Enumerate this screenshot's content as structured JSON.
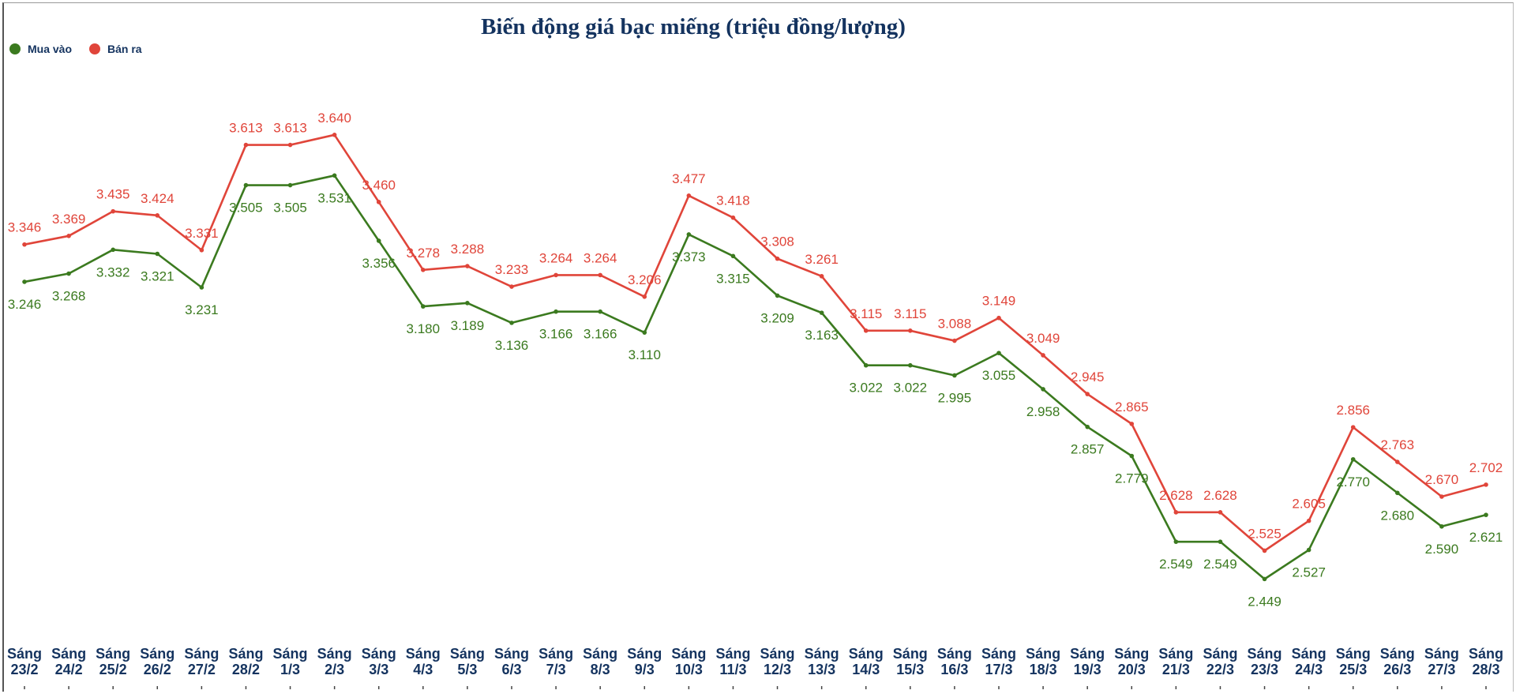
{
  "chart_data": {
    "type": "line",
    "title": "Biến động giá bạc miếng (triệu đồng/lượng)",
    "xlabel": "",
    "ylabel": "",
    "ylim": [
      2.2,
      3.9
    ],
    "grid": false,
    "legend_position": "top-left",
    "categories": [
      "Sáng 23/2",
      "Sáng 24/2",
      "Sáng 25/2",
      "Sáng 26/2",
      "Sáng 27/2",
      "Sáng 28/2",
      "Sáng 1/3",
      "Sáng 2/3",
      "Sáng 3/3",
      "Sáng 4/3",
      "Sáng 5/3",
      "Sáng 6/3",
      "Sáng 7/3",
      "Sáng 8/3",
      "Sáng 9/3",
      "Sáng 10/3",
      "Sáng 11/3",
      "Sáng 12/3",
      "Sáng 13/3",
      "Sáng 14/3",
      "Sáng 15/3",
      "Sáng 16/3",
      "Sáng 17/3",
      "Sáng 18/3",
      "Sáng 19/3",
      "Sáng 20/3",
      "Sáng 21/3",
      "Sáng 22/3",
      "Sáng 23/3",
      "Sáng 24/3",
      "Sáng 25/3",
      "Sáng 26/3",
      "Sáng 27/3",
      "Sáng 28/3"
    ],
    "series": [
      {
        "name": "Mua vào",
        "color": "#3b7a1f",
        "values": [
          3.246,
          3.268,
          3.332,
          3.321,
          3.231,
          3.505,
          3.505,
          3.531,
          3.356,
          3.18,
          3.189,
          3.136,
          3.166,
          3.166,
          3.11,
          3.373,
          3.315,
          3.209,
          3.163,
          3.022,
          3.022,
          2.995,
          3.055,
          2.958,
          2.857,
          2.779,
          2.549,
          2.549,
          2.449,
          2.527,
          2.77,
          2.68,
          2.59,
          2.621
        ]
      },
      {
        "name": "Bán ra",
        "color": "#e0453a",
        "values": [
          3.346,
          3.369,
          3.435,
          3.424,
          3.331,
          3.613,
          3.613,
          3.64,
          3.46,
          3.278,
          3.288,
          3.233,
          3.264,
          3.264,
          3.206,
          3.477,
          3.418,
          3.308,
          3.261,
          3.115,
          3.115,
          3.088,
          3.149,
          3.049,
          2.945,
          2.865,
          2.628,
          2.628,
          2.525,
          2.605,
          2.856,
          2.763,
          2.67,
          2.702
        ]
      }
    ]
  }
}
